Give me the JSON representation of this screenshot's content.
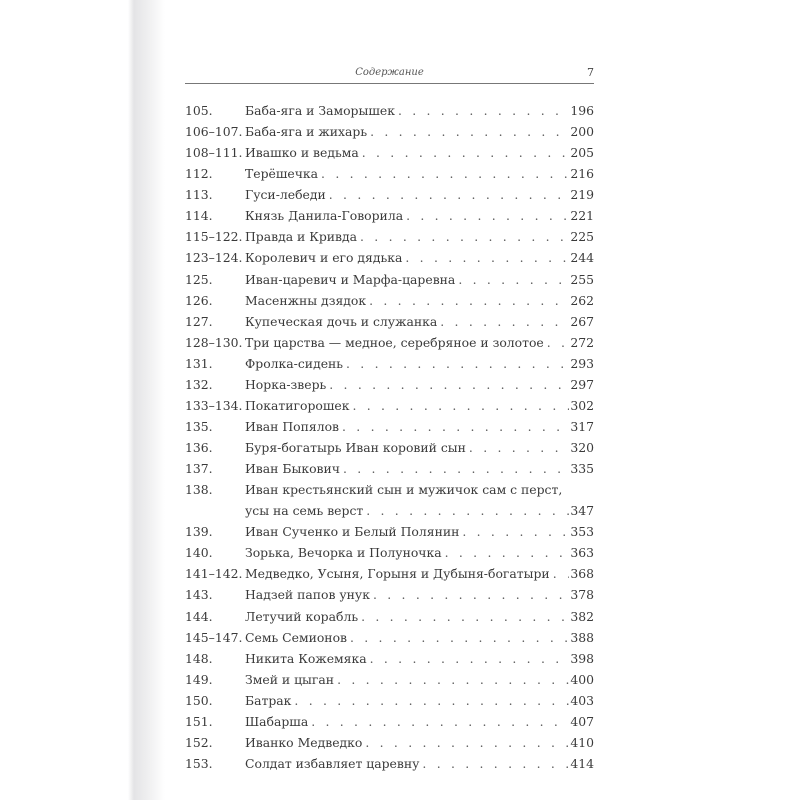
{
  "header": {
    "title": "Содержание",
    "page_number": "7"
  },
  "entries": [
    {
      "num": "105.",
      "title": [
        "Баба-яга и Заморышек"
      ],
      "page": "196"
    },
    {
      "num": "106–107.",
      "title": [
        "Баба-яга и жихарь"
      ],
      "page": "200"
    },
    {
      "num": "108–111.",
      "title": [
        "Ивашко и ведьма"
      ],
      "page": "205"
    },
    {
      "num": "112.",
      "title": [
        "Терёшечка"
      ],
      "page": "216"
    },
    {
      "num": "113.",
      "title": [
        "Гуси-лебеди"
      ],
      "page": "219"
    },
    {
      "num": "114.",
      "title": [
        "Князь Данила-Говорила"
      ],
      "page": "221"
    },
    {
      "num": "115–122.",
      "title": [
        "Правда и Кривда"
      ],
      "page": "225"
    },
    {
      "num": "123–124.",
      "title": [
        "Королевич и его дядька"
      ],
      "page": "244"
    },
    {
      "num": "125.",
      "title": [
        "Иван-царевич и Марфа-царевна"
      ],
      "page": "255"
    },
    {
      "num": "126.",
      "title": [
        "Масенжны дзядок"
      ],
      "page": "262"
    },
    {
      "num": "127.",
      "title": [
        "Купеческая дочь и служанка"
      ],
      "page": "267"
    },
    {
      "num": "128–130.",
      "title": [
        "Три царства — медное, серебряное и золотое"
      ],
      "page": "272"
    },
    {
      "num": "131.",
      "title": [
        "Фролка-сидень"
      ],
      "page": "293"
    },
    {
      "num": "132.",
      "title": [
        "Норка-зверь"
      ],
      "page": "297"
    },
    {
      "num": "133–134.",
      "title": [
        "Покатигорошек"
      ],
      "page": "302"
    },
    {
      "num": "135.",
      "title": [
        "Иван Попялов"
      ],
      "page": "317"
    },
    {
      "num": "136.",
      "title": [
        "Буря-богатырь Иван коровий сын"
      ],
      "page": "320"
    },
    {
      "num": "137.",
      "title": [
        "Иван Быкович"
      ],
      "page": "335"
    },
    {
      "num": "138.",
      "title": [
        "Иван крестьянский сын и мужичок сам с перст,",
        "усы на семь верст"
      ],
      "page": "347"
    },
    {
      "num": "139.",
      "title": [
        "Иван Сученко и Белый Полянин"
      ],
      "page": "353"
    },
    {
      "num": "140.",
      "title": [
        "Зорька, Вечорка и Полуночка"
      ],
      "page": "363"
    },
    {
      "num": "141–142.",
      "title": [
        "Медведко, Усыня, Горыня и Дубыня-богатыри"
      ],
      "page": "368"
    },
    {
      "num": "143.",
      "title": [
        "Надзей папов унук"
      ],
      "page": "378"
    },
    {
      "num": "144.",
      "title": [
        "Летучий корабль"
      ],
      "page": "382"
    },
    {
      "num": "145–147.",
      "title": [
        "Семь Семионов"
      ],
      "page": "388"
    },
    {
      "num": "148.",
      "title": [
        "Никита Кожемяка"
      ],
      "page": "398"
    },
    {
      "num": "149.",
      "title": [
        "Змей и цыган"
      ],
      "page": "400"
    },
    {
      "num": "150.",
      "title": [
        "Батрак"
      ],
      "page": "403"
    },
    {
      "num": "151.",
      "title": [
        "Шабарша"
      ],
      "page": "407"
    },
    {
      "num": "152.",
      "title": [
        "Иванко Медведко"
      ],
      "page": "410"
    },
    {
      "num": "153.",
      "title": [
        "Солдат избавляет царевну"
      ],
      "page": "414"
    }
  ]
}
